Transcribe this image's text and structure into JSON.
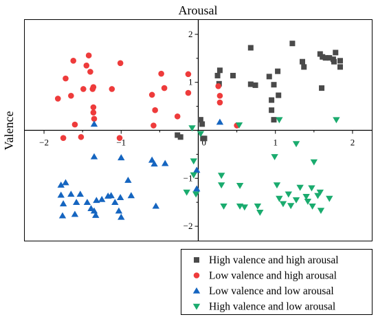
{
  "chart_data": {
    "type": "scatter",
    "title": "",
    "xlabel": "Arousal",
    "ylabel": "Valence",
    "xlim": [
      -2.25,
      2.25
    ],
    "ylim": [
      -2.3,
      2.3
    ],
    "x_ticks": [
      -2,
      -1,
      1,
      2
    ],
    "y_ticks": [
      -2,
      -1,
      1,
      2
    ],
    "x_tick_labels": [
      "−2",
      "−1",
      "1",
      "2"
    ],
    "y_tick_labels": [
      "−2",
      "−1",
      "1",
      "2"
    ],
    "origin_label": "0",
    "axes_through_origin": true,
    "grid": false,
    "legend_placement": "below-right, outside",
    "series": [
      {
        "name": "High valence and high arousal",
        "marker": "square",
        "color": "#4a4a4a",
        "points": [
          [
            0.03,
            0.22
          ],
          [
            0.05,
            0.13
          ],
          [
            0.25,
            1.14
          ],
          [
            0.28,
            1.25
          ],
          [
            0.27,
            0.97
          ],
          [
            0.45,
            1.14
          ],
          [
            0.68,
            1.72
          ],
          [
            0.68,
            0.96
          ],
          [
            0.74,
            0.94
          ],
          [
            0.92,
            1.12
          ],
          [
            0.95,
            0.63
          ],
          [
            0.98,
            0.95
          ],
          [
            1.03,
            1.23
          ],
          [
            1.04,
            0.73
          ],
          [
            0.95,
            0.42
          ],
          [
            0.98,
            0.22
          ],
          [
            1.22,
            1.81
          ],
          [
            1.35,
            1.43
          ],
          [
            1.37,
            1.32
          ],
          [
            1.58,
            1.59
          ],
          [
            1.6,
            0.88
          ],
          [
            1.61,
            1.53
          ],
          [
            1.65,
            1.51
          ],
          [
            1.7,
            1.51
          ],
          [
            1.75,
            1.48
          ],
          [
            1.76,
            1.43
          ],
          [
            1.78,
            1.62
          ],
          [
            1.84,
            1.45
          ],
          [
            1.84,
            1.32
          ],
          [
            -0.27,
            -0.1
          ],
          [
            -0.23,
            -0.14
          ],
          [
            0.06,
            -0.17
          ],
          [
            0.08,
            -0.17
          ]
        ]
      },
      {
        "name": "Low valence and high arousal",
        "marker": "circle",
        "color": "#ee3b3b",
        "points": [
          [
            -1.82,
            0.66
          ],
          [
            -1.72,
            1.08
          ],
          [
            -1.65,
            0.72
          ],
          [
            -1.62,
            1.45
          ],
          [
            -1.6,
            0.12
          ],
          [
            -1.49,
            0.86
          ],
          [
            -1.45,
            1.35
          ],
          [
            -1.42,
            1.56
          ],
          [
            -1.4,
            1.22
          ],
          [
            -1.37,
            0.86
          ],
          [
            -1.36,
            0.9
          ],
          [
            -1.36,
            0.48
          ],
          [
            -1.36,
            0.37
          ],
          [
            -1.35,
            0.24
          ],
          [
            -1.12,
            0.86
          ],
          [
            -1.01,
            1.4
          ],
          [
            -0.6,
            0.74
          ],
          [
            -0.56,
            0.42
          ],
          [
            -0.48,
            1.18
          ],
          [
            -0.44,
            0.88
          ],
          [
            -0.27,
            0.29
          ],
          [
            -0.13,
            1.17
          ],
          [
            -0.13,
            0.78
          ],
          [
            0.26,
            0.92
          ],
          [
            0.28,
            0.72
          ],
          [
            0.28,
            0.58
          ],
          [
            0.5,
            0.1
          ],
          [
            -0.58,
            0.1
          ],
          [
            -1.52,
            -0.14
          ],
          [
            -1.75,
            -0.16
          ],
          [
            -1.02,
            -0.16
          ]
        ]
      },
      {
        "name": "Low valence and low arousal",
        "marker": "triangle-up",
        "color": "#1565c0",
        "points": [
          [
            -1.35,
            0.13
          ],
          [
            -1.35,
            -0.55
          ],
          [
            -1.0,
            -0.57
          ],
          [
            -0.6,
            -0.62
          ],
          [
            -0.57,
            -0.7
          ],
          [
            -0.43,
            -0.69
          ],
          [
            -1.78,
            -1.14
          ],
          [
            -1.72,
            -1.09
          ],
          [
            -1.78,
            -1.35
          ],
          [
            -1.75,
            -1.53
          ],
          [
            -1.65,
            -1.33
          ],
          [
            -1.58,
            -1.5
          ],
          [
            -1.53,
            -1.33
          ],
          [
            -1.44,
            -1.5
          ],
          [
            -1.39,
            -1.63
          ],
          [
            -1.35,
            -1.68
          ],
          [
            -1.32,
            -1.46
          ],
          [
            -1.25,
            -1.44
          ],
          [
            -1.17,
            -1.37
          ],
          [
            -1.13,
            -1.36
          ],
          [
            -1.08,
            -1.5
          ],
          [
            -1.01,
            -1.4
          ],
          [
            -1.03,
            -1.68
          ],
          [
            -0.87,
            -1.36
          ],
          [
            -0.91,
            -1.04
          ],
          [
            -0.55,
            -1.58
          ],
          [
            -1.76,
            -1.78
          ],
          [
            -1.6,
            -1.75
          ],
          [
            -1.33,
            -1.77
          ],
          [
            -1.0,
            -1.81
          ],
          [
            0.28,
            0.17
          ],
          [
            -0.02,
            -0.83
          ],
          [
            -0.02,
            -1.22
          ]
        ]
      },
      {
        "name": "High valence and low arousal",
        "marker": "triangle-down",
        "color": "#1aab6e",
        "points": [
          [
            -0.08,
            0.05
          ],
          [
            0.03,
            -0.07
          ],
          [
            0.53,
            0.11
          ],
          [
            1.05,
            0.22
          ],
          [
            1.79,
            0.22
          ],
          [
            -0.06,
            -0.64
          ],
          [
            -0.06,
            -0.93
          ],
          [
            0.3,
            -0.94
          ],
          [
            0.3,
            -1.14
          ],
          [
            0.54,
            -1.15
          ],
          [
            0.99,
            -0.55
          ],
          [
            1.27,
            -0.28
          ],
          [
            1.5,
            -0.66
          ],
          [
            1.02,
            -1.14
          ],
          [
            1.17,
            -1.33
          ],
          [
            1.32,
            -1.19
          ],
          [
            1.4,
            -1.38
          ],
          [
            1.47,
            -1.2
          ],
          [
            1.58,
            -1.29
          ],
          [
            1.7,
            -1.42
          ],
          [
            1.55,
            -1.36
          ],
          [
            1.05,
            -1.42
          ],
          [
            1.1,
            -1.53
          ],
          [
            1.2,
            -1.57
          ],
          [
            1.27,
            -1.45
          ],
          [
            1.42,
            -1.48
          ],
          [
            1.48,
            -1.58
          ],
          [
            1.59,
            -1.67
          ],
          [
            0.77,
            -1.58
          ],
          [
            0.8,
            -1.71
          ],
          [
            0.54,
            -1.58
          ],
          [
            0.33,
            -1.58
          ],
          [
            0.6,
            -1.6
          ],
          [
            -0.03,
            -1.33
          ],
          [
            -0.15,
            -1.29
          ]
        ]
      }
    ]
  }
}
